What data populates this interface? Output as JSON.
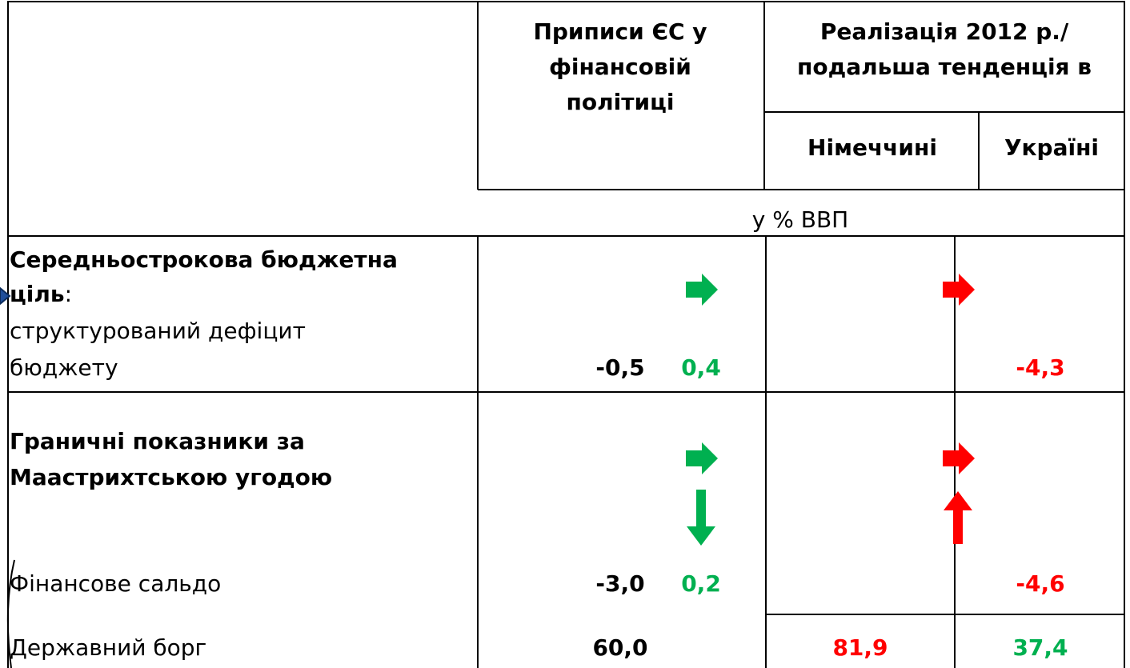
{
  "table": {
    "header": {
      "col2": [
        "Приписи ЄС у",
        "фінансовій",
        "політиці"
      ],
      "col3": [
        "Реалізація 2012 р./",
        "подальша тенденція в"
      ],
      "germany": "Німеччині",
      "ukraine": "Україні",
      "unit": "у % ВВП"
    },
    "rows": [
      {
        "title_lines": [
          "Середньострокова бюджетна",
          "ціль"
        ],
        "title_suffix": ":",
        "subtitle_lines": [
          "структурований дефіцит",
          "бюджету"
        ],
        "eu": "-0,5",
        "germany": "0,4",
        "ukraine": "-4,3"
      },
      {
        "title_lines": [
          "Граничні показники за",
          "Маастрихтською угодою"
        ],
        "items": [
          {
            "label": "Фінансове сальдо",
            "eu": "-3,0",
            "germany": "0,2",
            "ukraine": "-4,6"
          },
          {
            "label": "Державний борг",
            "eu": "60,0",
            "germany": "81,9",
            "ukraine": "37,4"
          }
        ]
      }
    ]
  }
}
